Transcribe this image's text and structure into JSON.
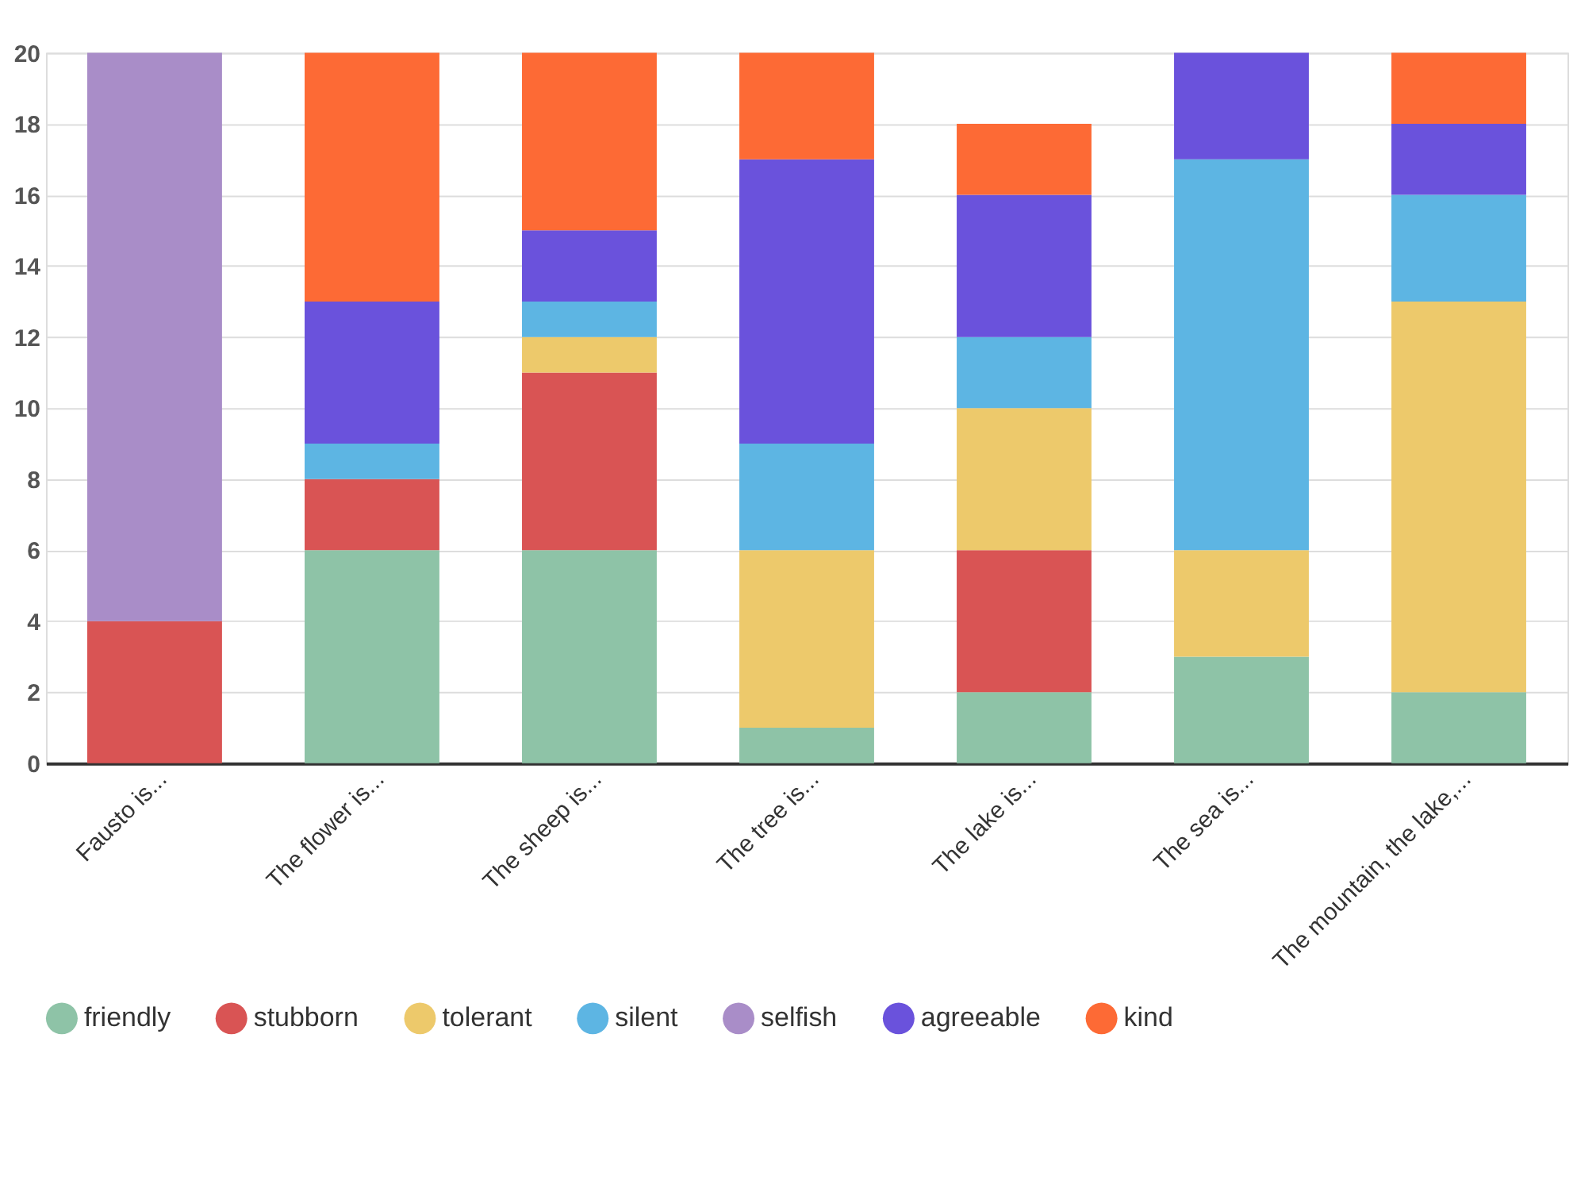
{
  "chart_data": {
    "type": "bar",
    "stacked": true,
    "categories": [
      "Fausto is...",
      "The flower is...",
      "The sheep is...",
      "The tree is...",
      "The lake is...",
      "The sea is...",
      "The mountain, the lake,..."
    ],
    "series": [
      {
        "name": "friendly",
        "color": "#8ec3a7",
        "values": [
          0,
          6,
          6,
          1,
          2,
          3,
          2
        ]
      },
      {
        "name": "stubborn",
        "color": "#d95454",
        "values": [
          4,
          2,
          5,
          0,
          4,
          0,
          0
        ]
      },
      {
        "name": "tolerant",
        "color": "#edc96b",
        "values": [
          0,
          0,
          1,
          5,
          4,
          3,
          11
        ]
      },
      {
        "name": "silent",
        "color": "#5db5e3",
        "values": [
          0,
          1,
          1,
          3,
          2,
          11,
          3
        ]
      },
      {
        "name": "selfish",
        "color": "#a98dc8",
        "values": [
          16,
          0,
          0,
          0,
          0,
          0,
          0
        ]
      },
      {
        "name": "agreeable",
        "color": "#6a52dc",
        "values": [
          0,
          4,
          2,
          8,
          4,
          3,
          2
        ]
      },
      {
        "name": "kind",
        "color": "#fd6a35",
        "values": [
          0,
          7,
          5,
          3,
          2,
          0,
          2
        ]
      }
    ],
    "ylim": [
      0,
      20
    ],
    "yticks": [
      0,
      2,
      4,
      6,
      8,
      10,
      12,
      14,
      16,
      18,
      20
    ],
    "grid": "y",
    "legend": "bottom"
  }
}
